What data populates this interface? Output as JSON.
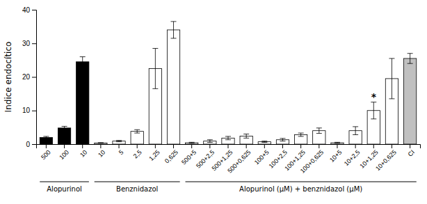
{
  "chart_data": {
    "type": "bar",
    "categories": [
      "500",
      "100",
      "10",
      "10",
      "5",
      "2,5",
      "1,25",
      "0,625",
      "500+5",
      "500+2,5",
      "500+1,25",
      "500+0,625",
      "100+5",
      "100+2,5",
      "100+1,25",
      "100+0,625",
      "10+5",
      "10+2,5",
      "10+1,25",
      "10+0,625",
      "CI"
    ],
    "values": [
      2.0,
      4.8,
      24.5,
      0.35,
      0.9,
      3.8,
      22.5,
      34.0,
      0.4,
      0.9,
      1.8,
      2.4,
      0.7,
      1.3,
      2.8,
      4.0,
      0.4,
      4.0,
      10.0,
      19.5,
      25.5
    ],
    "errors": [
      0.3,
      0.5,
      1.5,
      0.1,
      0.2,
      0.5,
      6.0,
      2.5,
      0.15,
      0.4,
      0.5,
      0.6,
      0.2,
      0.4,
      0.5,
      0.8,
      0.15,
      1.2,
      2.5,
      6.0,
      1.5
    ],
    "colors": [
      "black",
      "black",
      "black",
      "white",
      "white",
      "white",
      "white",
      "white",
      "white",
      "white",
      "white",
      "white",
      "white",
      "white",
      "white",
      "white",
      "white",
      "white",
      "white",
      "white",
      "#c0c0c0"
    ],
    "annotations": [
      {
        "text": "*",
        "category": "10+1,25"
      }
    ],
    "groups": [
      {
        "name": "Alopurinol",
        "start": 0,
        "end": 2
      },
      {
        "name": "Benznidazol",
        "start": 3,
        "end": 7
      },
      {
        "name": "Alopurinol (μM) + benznidazol (μM)",
        "start": 8,
        "end": 20
      }
    ],
    "ylabel": "Indice endocítico",
    "ylim": [
      0,
      40
    ],
    "yticks": [
      0,
      10,
      20,
      30,
      40
    ],
    "grid": false
  }
}
